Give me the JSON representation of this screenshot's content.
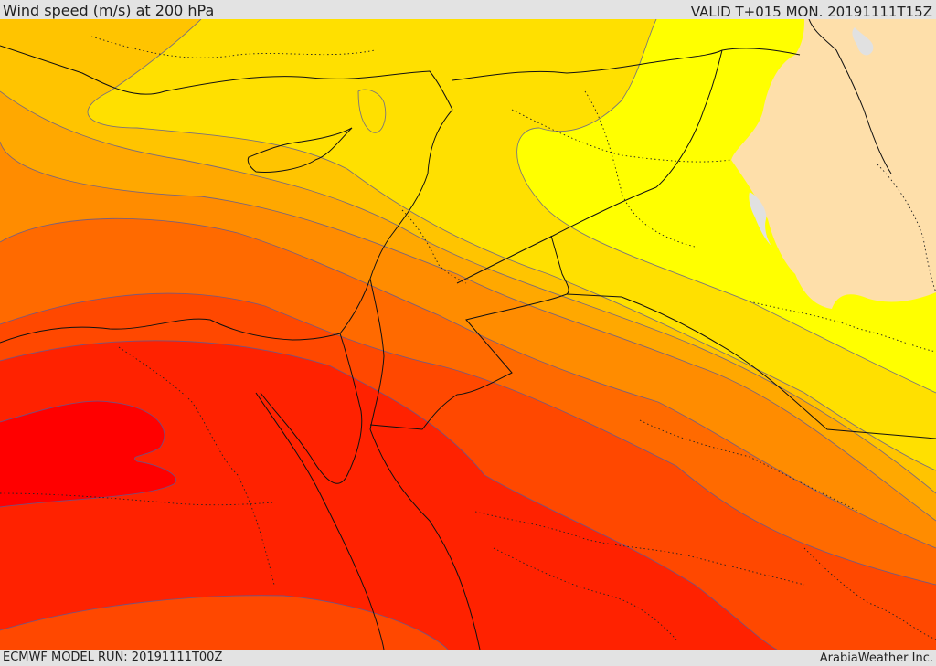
{
  "header": {
    "title": "Wind speed (m/s) at 200 hPa",
    "valid": "VALID T+015 MON. 20191111T15Z"
  },
  "footer": {
    "model_run": "ECMWF MODEL RUN: 20191111T00Z",
    "credit": "ArabiaWeather Inc."
  },
  "colors": {
    "frame": "#e3e3e3",
    "band_1": "#ffff00",
    "band_2": "#ffe000",
    "band_3": "#ffc400",
    "band_4": "#ffa800",
    "band_5": "#ff8c00",
    "band_6": "#ff6a00",
    "band_7": "#ff4800",
    "band_8": "#ff2200",
    "band_9": "#ff0000",
    "land_mask": "#fedfaa",
    "water": "#e1e1e1"
  }
}
